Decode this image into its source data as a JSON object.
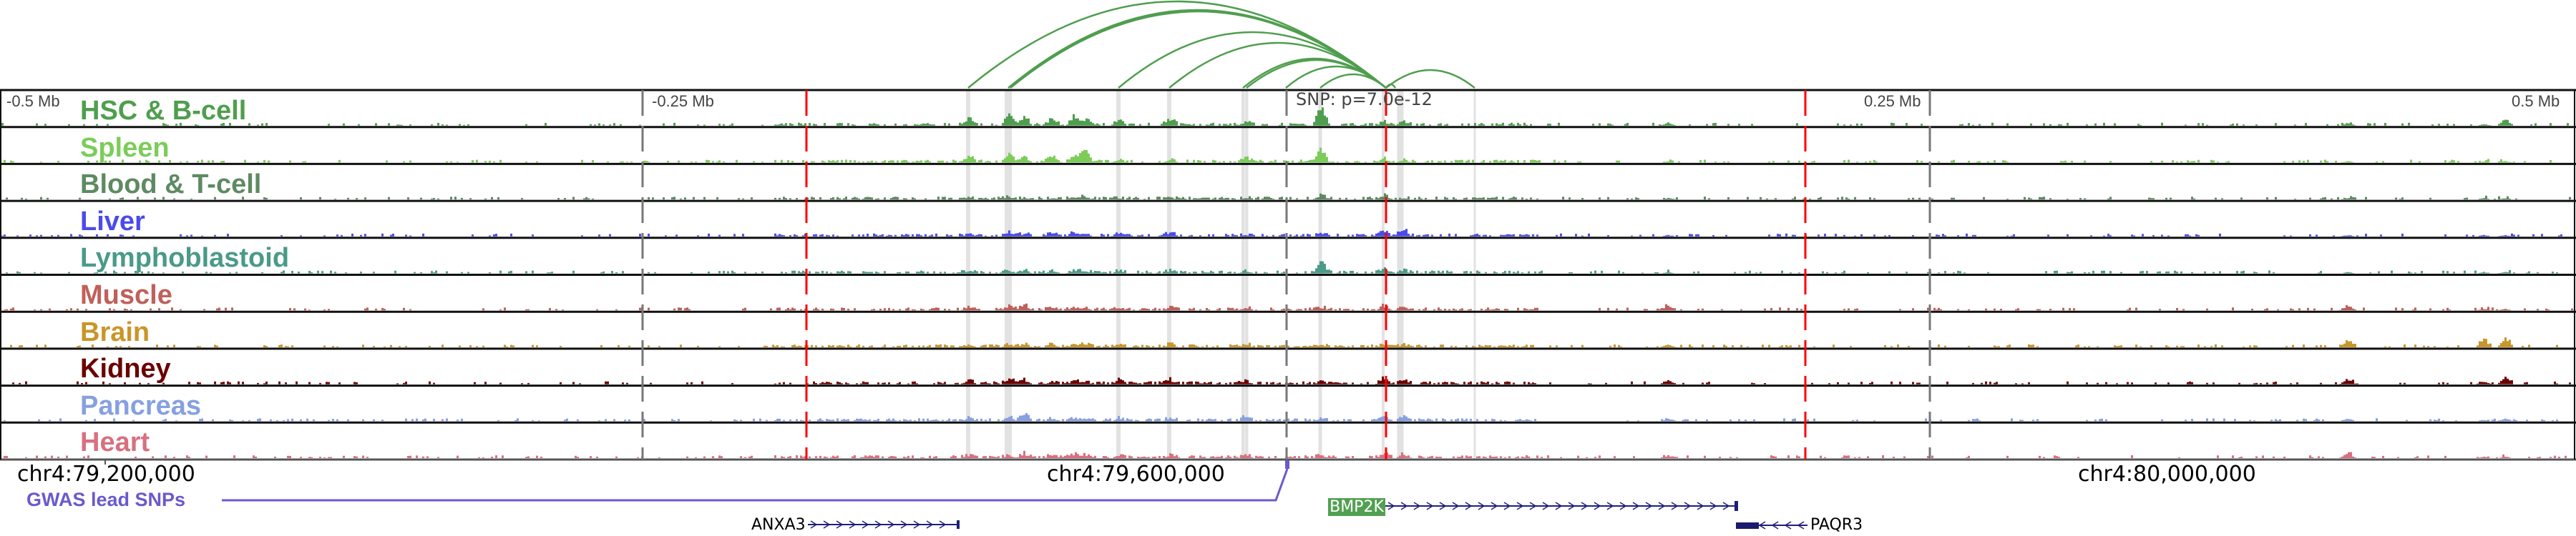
{
  "ruler": {
    "left_label": "-0.5 Mb",
    "mid_left_label": "-0.25 Mb",
    "mid_right_label": "0.25 Mb",
    "right_label": "0.5 Mb"
  },
  "snp": {
    "label": "SNP: p=7.0e-12",
    "color": "#ff0000"
  },
  "tracks": [
    {
      "label": "HSC & B-cell",
      "color": "#4f9e4f"
    },
    {
      "label": "Spleen",
      "color": "#7ccc5a"
    },
    {
      "label": "Blood & T-cell",
      "color": "#5e8a62"
    },
    {
      "label": "Liver",
      "color": "#4b4bea"
    },
    {
      "label": "Lymphoblastoid",
      "color": "#4a9a88"
    },
    {
      "label": "Muscle",
      "color": "#c0605a"
    },
    {
      "label": "Brain",
      "color": "#c8962a"
    },
    {
      "label": "Kidney",
      "color": "#6b0000"
    },
    {
      "label": "Pancreas",
      "color": "#86a0e0"
    },
    {
      "label": "Heart",
      "color": "#d87080"
    }
  ],
  "axis": {
    "labels": [
      "chr4:79,200,000",
      "chr4:79,600,000",
      "chr4:80,000,000"
    ]
  },
  "gwas": {
    "label": "GWAS lead SNPs",
    "color": "#6a5acd"
  },
  "genes": [
    {
      "name": "ANXA3",
      "strand": "+"
    },
    {
      "name": "BMP2K",
      "strand": "+",
      "highlight_color": "#52a052"
    },
    {
      "name": "PAQR3",
      "strand": "-"
    }
  ],
  "loops": {
    "color": "#4f9e4f"
  }
}
